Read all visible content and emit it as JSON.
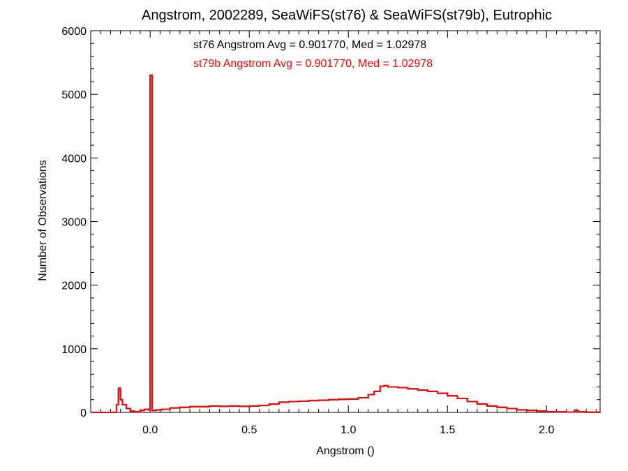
{
  "chart_data": {
    "type": "histogram",
    "title": "Angstrom, 2002289, SeaWiFS(st76) & SeaWiFS(st79b), Eutrophic",
    "xlabel": "Angstrom ()",
    "ylabel": "Number of Observations",
    "xlim": [
      -0.3,
      2.27
    ],
    "ylim": [
      0,
      6000
    ],
    "x_ticks": [
      0.0,
      0.5,
      1.0,
      1.5,
      2.0
    ],
    "x_tick_labels": [
      "0.0",
      "0.5",
      "1.0",
      "1.5",
      "2.0"
    ],
    "y_ticks": [
      0,
      1000,
      2000,
      3000,
      4000,
      5000,
      6000
    ],
    "y_tick_labels": [
      "0",
      "1000",
      "2000",
      "3000",
      "4000",
      "5000",
      "6000"
    ],
    "grid": false,
    "annotations": [
      {
        "text": "st76 Angstrom Avg = 0.901770, Med = 1.02978",
        "color": "#000000"
      },
      {
        "text": "st79b Angstrom Avg = 0.901770, Med = 1.02978",
        "color": "#ff0000"
      }
    ],
    "series": [
      {
        "name": "st76",
        "color": "#000000",
        "points": [
          [
            -0.3,
            0
          ],
          [
            -0.18,
            0
          ],
          [
            -0.17,
            120
          ],
          [
            -0.16,
            380
          ],
          [
            -0.15,
            200
          ],
          [
            -0.14,
            120
          ],
          [
            -0.12,
            60
          ],
          [
            -0.1,
            20
          ],
          [
            -0.08,
            10
          ],
          [
            -0.05,
            30
          ],
          [
            -0.03,
            50
          ],
          [
            -0.01,
            40
          ],
          [
            0.0,
            5300
          ],
          [
            0.01,
            30
          ],
          [
            0.03,
            40
          ],
          [
            0.06,
            50
          ],
          [
            0.1,
            70
          ],
          [
            0.15,
            80
          ],
          [
            0.2,
            90
          ],
          [
            0.25,
            90
          ],
          [
            0.3,
            100
          ],
          [
            0.35,
            95
          ],
          [
            0.4,
            100
          ],
          [
            0.45,
            95
          ],
          [
            0.5,
            100
          ],
          [
            0.55,
            110
          ],
          [
            0.6,
            130
          ],
          [
            0.65,
            160
          ],
          [
            0.7,
            170
          ],
          [
            0.75,
            175
          ],
          [
            0.8,
            185
          ],
          [
            0.85,
            190
          ],
          [
            0.9,
            200
          ],
          [
            0.95,
            205
          ],
          [
            1.0,
            210
          ],
          [
            1.05,
            230
          ],
          [
            1.1,
            280
          ],
          [
            1.13,
            330
          ],
          [
            1.16,
            410
          ],
          [
            1.18,
            420
          ],
          [
            1.2,
            400
          ],
          [
            1.25,
            390
          ],
          [
            1.3,
            370
          ],
          [
            1.35,
            350
          ],
          [
            1.4,
            330
          ],
          [
            1.45,
            300
          ],
          [
            1.5,
            260
          ],
          [
            1.55,
            220
          ],
          [
            1.6,
            170
          ],
          [
            1.65,
            130
          ],
          [
            1.7,
            100
          ],
          [
            1.75,
            80
          ],
          [
            1.8,
            60
          ],
          [
            1.85,
            40
          ],
          [
            1.9,
            30
          ],
          [
            1.95,
            20
          ],
          [
            2.0,
            10
          ],
          [
            2.05,
            8
          ],
          [
            2.1,
            5
          ],
          [
            2.14,
            30
          ],
          [
            2.16,
            8
          ],
          [
            2.2,
            3
          ],
          [
            2.27,
            0
          ]
        ]
      },
      {
        "name": "st79b",
        "color": "#ff0000",
        "points": [
          [
            -0.3,
            0
          ],
          [
            -0.18,
            0
          ],
          [
            -0.17,
            120
          ],
          [
            -0.16,
            380
          ],
          [
            -0.15,
            200
          ],
          [
            -0.14,
            120
          ],
          [
            -0.12,
            60
          ],
          [
            -0.1,
            20
          ],
          [
            -0.08,
            10
          ],
          [
            -0.05,
            30
          ],
          [
            -0.03,
            50
          ],
          [
            -0.01,
            40
          ],
          [
            0.0,
            5300
          ],
          [
            0.01,
            30
          ],
          [
            0.03,
            40
          ],
          [
            0.06,
            50
          ],
          [
            0.1,
            70
          ],
          [
            0.15,
            80
          ],
          [
            0.2,
            90
          ],
          [
            0.25,
            90
          ],
          [
            0.3,
            100
          ],
          [
            0.35,
            95
          ],
          [
            0.4,
            100
          ],
          [
            0.45,
            95
          ],
          [
            0.5,
            100
          ],
          [
            0.55,
            110
          ],
          [
            0.6,
            130
          ],
          [
            0.65,
            160
          ],
          [
            0.7,
            170
          ],
          [
            0.75,
            175
          ],
          [
            0.8,
            185
          ],
          [
            0.85,
            190
          ],
          [
            0.9,
            200
          ],
          [
            0.95,
            205
          ],
          [
            1.0,
            210
          ],
          [
            1.05,
            230
          ],
          [
            1.1,
            280
          ],
          [
            1.13,
            330
          ],
          [
            1.16,
            410
          ],
          [
            1.18,
            420
          ],
          [
            1.2,
            400
          ],
          [
            1.25,
            390
          ],
          [
            1.3,
            370
          ],
          [
            1.35,
            350
          ],
          [
            1.4,
            330
          ],
          [
            1.45,
            300
          ],
          [
            1.5,
            260
          ],
          [
            1.55,
            220
          ],
          [
            1.6,
            170
          ],
          [
            1.65,
            130
          ],
          [
            1.7,
            100
          ],
          [
            1.75,
            80
          ],
          [
            1.8,
            60
          ],
          [
            1.85,
            40
          ],
          [
            1.9,
            30
          ],
          [
            1.95,
            20
          ],
          [
            2.0,
            10
          ],
          [
            2.05,
            8
          ],
          [
            2.1,
            5
          ],
          [
            2.14,
            30
          ],
          [
            2.16,
            8
          ],
          [
            2.2,
            3
          ],
          [
            2.27,
            0
          ]
        ]
      }
    ]
  }
}
